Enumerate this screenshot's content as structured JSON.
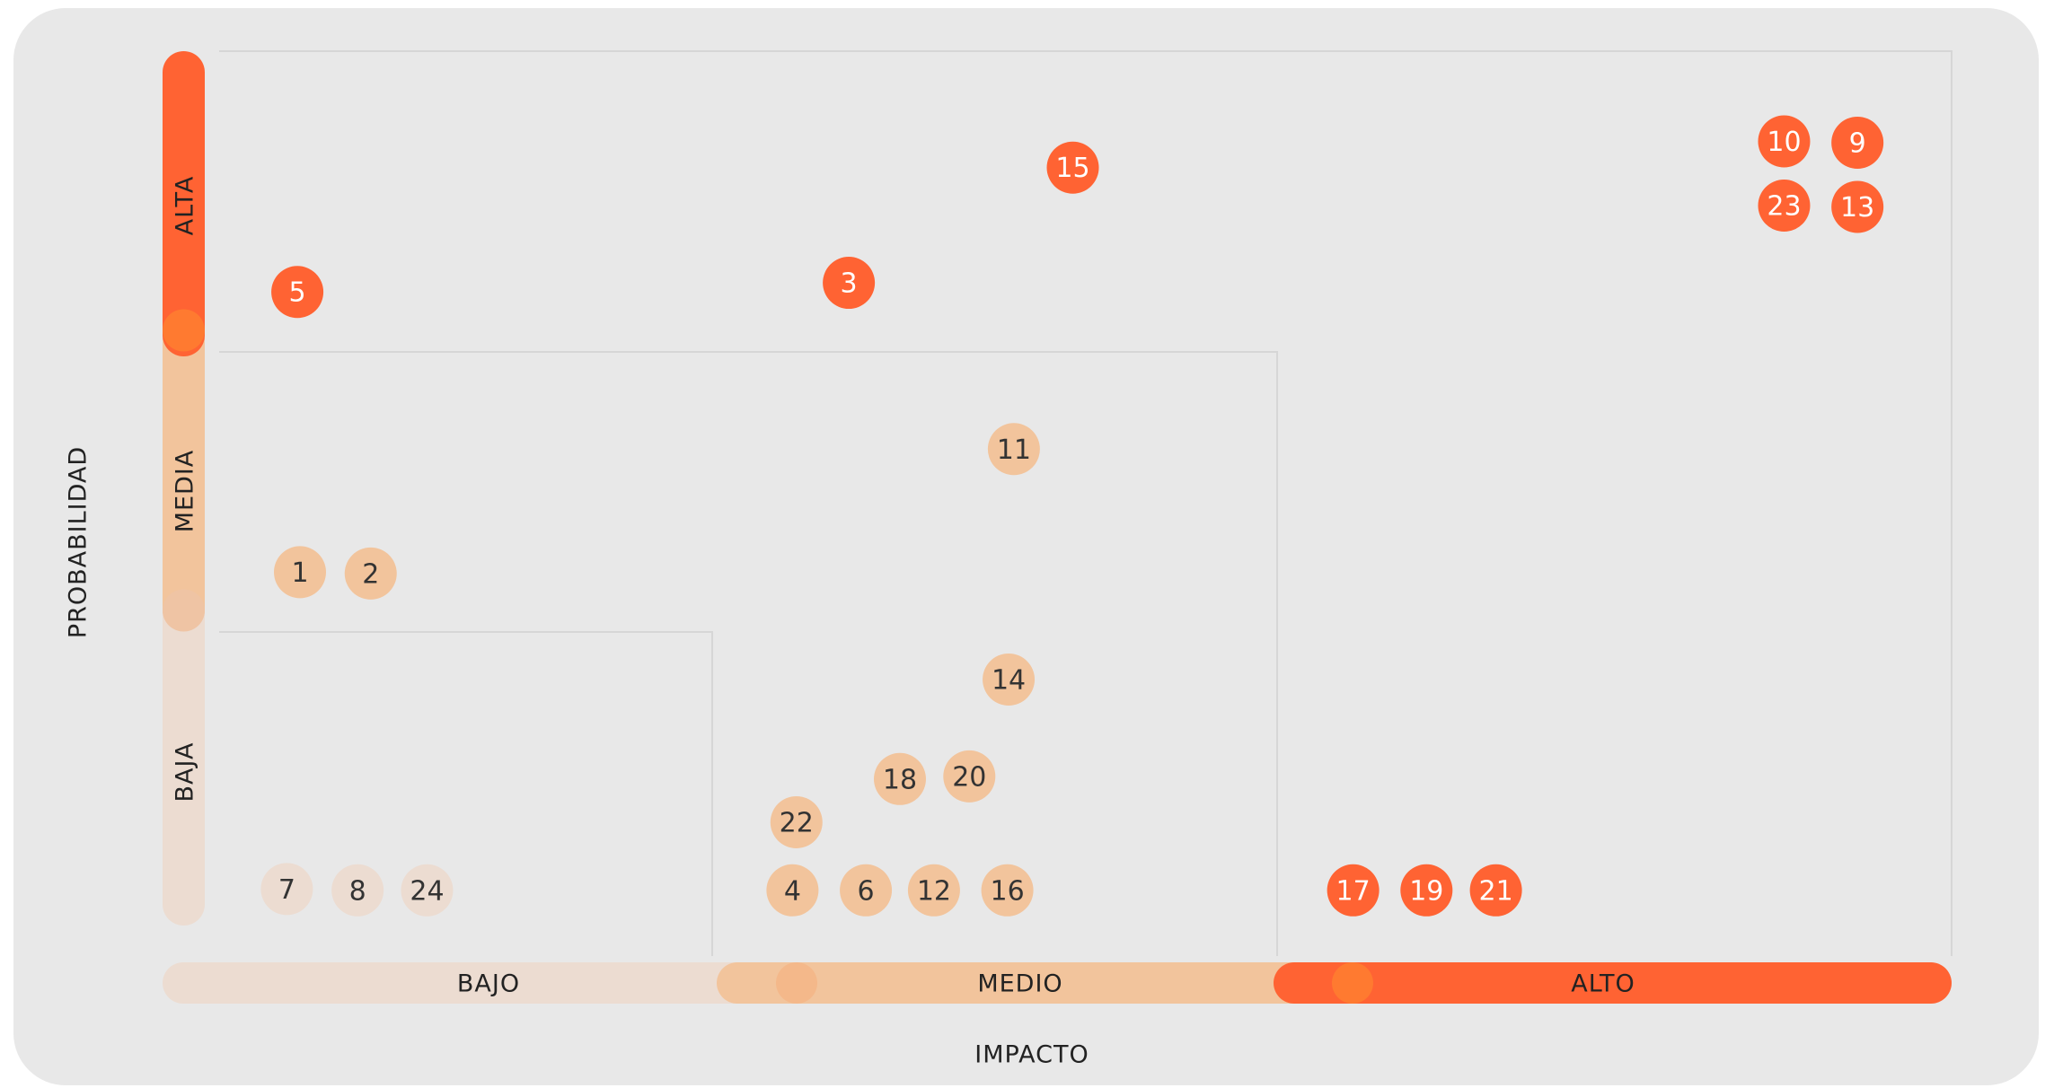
{
  "axes": {
    "y_title": "PROBABILIDAD",
    "x_title": "IMPACTO",
    "y_levels": [
      "ALTA",
      "MEDIA",
      "BAJA"
    ],
    "x_levels": [
      "BAJO",
      "MEDIO",
      "ALTO"
    ]
  },
  "risks": [
    "15",
    "10",
    "9",
    "23",
    "13",
    "5",
    "3",
    "11",
    "1",
    "2",
    "14",
    "18",
    "20",
    "22",
    "4",
    "6",
    "12",
    "16",
    "7",
    "8",
    "24",
    "17",
    "19",
    "21"
  ]
}
